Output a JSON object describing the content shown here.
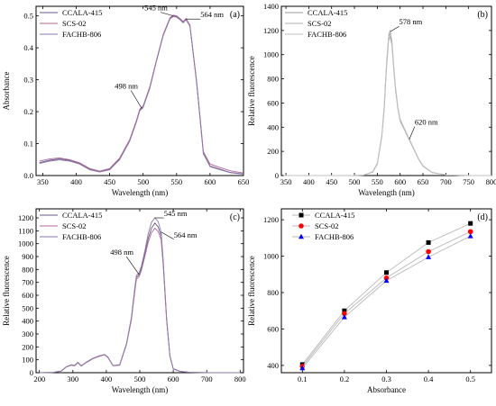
{
  "chart_data": [
    {
      "id": "a",
      "type": "line",
      "panel_label": "(a)",
      "xlabel": "Wavelength (nm)",
      "ylabel": "Absorbance",
      "xlim": [
        340,
        650
      ],
      "ylim": [
        0,
        0.53
      ],
      "xticks": [
        350,
        400,
        450,
        500,
        550,
        600,
        650
      ],
      "yticks": [
        0.0,
        0.1,
        0.2,
        0.3,
        0.4,
        0.5
      ],
      "ytick_decimals": 1,
      "legend_position": "top-left",
      "marker": "none",
      "series": [
        {
          "name": "CCALA-415",
          "color": "#6a5a8a",
          "x": [
            345,
            360,
            375,
            390,
            405,
            420,
            435,
            450,
            465,
            480,
            490,
            495,
            500,
            510,
            520,
            530,
            540,
            545,
            550,
            555,
            560,
            564,
            570,
            580,
            590,
            600,
            615,
            630,
            650
          ],
          "y": [
            0.04,
            0.048,
            0.052,
            0.048,
            0.038,
            0.02,
            0.012,
            0.02,
            0.052,
            0.11,
            0.17,
            0.205,
            0.215,
            0.275,
            0.36,
            0.44,
            0.492,
            0.5,
            0.498,
            0.49,
            0.48,
            0.49,
            0.47,
            0.29,
            0.07,
            0.03,
            0.02,
            0.01,
            0.005
          ]
        },
        {
          "name": "SCS-02",
          "color": "#b06a9a",
          "x": [
            345,
            360,
            375,
            390,
            405,
            420,
            435,
            450,
            465,
            480,
            490,
            495,
            500,
            510,
            520,
            530,
            540,
            545,
            550,
            555,
            560,
            564,
            570,
            580,
            590,
            600,
            615,
            630,
            650
          ],
          "y": [
            0.045,
            0.052,
            0.055,
            0.05,
            0.04,
            0.022,
            0.014,
            0.022,
            0.055,
            0.113,
            0.173,
            0.208,
            0.218,
            0.278,
            0.362,
            0.442,
            0.494,
            0.502,
            0.5,
            0.492,
            0.482,
            0.492,
            0.472,
            0.295,
            0.075,
            0.036,
            0.025,
            0.015,
            0.008
          ]
        },
        {
          "name": "FACHB-806",
          "color": "#8a7aa8",
          "x": [
            345,
            360,
            375,
            390,
            405,
            420,
            435,
            450,
            465,
            480,
            490,
            495,
            500,
            510,
            520,
            530,
            540,
            545,
            550,
            555,
            560,
            564,
            570,
            580,
            590,
            600,
            615,
            630,
            650
          ],
          "y": [
            0.038,
            0.045,
            0.049,
            0.045,
            0.036,
            0.018,
            0.011,
            0.018,
            0.05,
            0.108,
            0.168,
            0.203,
            0.213,
            0.273,
            0.358,
            0.438,
            0.49,
            0.498,
            0.496,
            0.488,
            0.478,
            0.488,
            0.468,
            0.288,
            0.068,
            0.028,
            0.018,
            0.009,
            0.004
          ]
        }
      ],
      "annotations": [
        {
          "text": "545 nm",
          "x": 545,
          "y": 0.5
        },
        {
          "text": "564 nm",
          "x": 564,
          "y": 0.49
        },
        {
          "text": "498 nm",
          "x": 498,
          "y": 0.21
        }
      ]
    },
    {
      "id": "b",
      "type": "line",
      "panel_label": "(b)",
      "xlabel": "Wavelength (nm)",
      "ylabel": "Relative fluorescence",
      "xlim": [
        340,
        800
      ],
      "ylim": [
        0,
        1400
      ],
      "xticks": [
        350,
        400,
        450,
        500,
        550,
        600,
        650,
        700,
        750,
        800
      ],
      "yticks": [
        0,
        200,
        400,
        600,
        800,
        1000,
        1200,
        1400
      ],
      "ytick_decimals": 0,
      "legend_position": "top-left",
      "marker": "none",
      "series": [
        {
          "name": "CCALA-415",
          "color": "#999999",
          "x": [
            345,
            400,
            450,
            500,
            520,
            540,
            550,
            560,
            565,
            570,
            575,
            578,
            582,
            586,
            590,
            595,
            600,
            610,
            620,
            630,
            640,
            650,
            670,
            700,
            750,
            800
          ],
          "y": [
            0,
            0,
            0,
            1,
            3,
            30,
            100,
            330,
            560,
            900,
            1150,
            1180,
            1100,
            900,
            720,
            560,
            460,
            380,
            300,
            220,
            140,
            80,
            25,
            5,
            0,
            0
          ]
        },
        {
          "name": "SCS-02",
          "color": "#b0b0b0",
          "x": [
            345,
            400,
            450,
            500,
            520,
            540,
            550,
            560,
            565,
            570,
            575,
            578,
            582,
            586,
            590,
            595,
            600,
            610,
            620,
            630,
            640,
            650,
            670,
            700,
            750,
            800
          ],
          "y": [
            0,
            0,
            0,
            1,
            3,
            28,
            95,
            320,
            540,
            880,
            1120,
            1150,
            1075,
            880,
            705,
            550,
            450,
            372,
            295,
            215,
            136,
            78,
            24,
            5,
            0,
            0
          ]
        },
        {
          "name": "FACHB-806",
          "color": "#c2c2c2",
          "x": [
            345,
            400,
            450,
            500,
            520,
            540,
            550,
            560,
            565,
            570,
            575,
            578,
            582,
            586,
            590,
            595,
            600,
            610,
            620,
            630,
            640,
            650,
            670,
            700,
            750,
            800
          ],
          "y": [
            0,
            0,
            0,
            1,
            3,
            32,
            105,
            340,
            580,
            920,
            1170,
            1200,
            1120,
            915,
            735,
            570,
            468,
            385,
            305,
            224,
            143,
            82,
            26,
            5,
            0,
            0
          ]
        }
      ],
      "annotations": [
        {
          "text": "578 nm",
          "x": 578,
          "y": 1190
        },
        {
          "text": "620 nm",
          "x": 620,
          "y": 300
        }
      ]
    },
    {
      "id": "c",
      "type": "line",
      "panel_label": "(c)",
      "xlabel": "Wavelength (nm)",
      "ylabel": "Relative fluorescence",
      "xlim": [
        190,
        810
      ],
      "ylim": [
        0,
        1270
      ],
      "xticks": [
        200,
        300,
        400,
        500,
        600,
        700,
        800
      ],
      "yticks": [
        0,
        100,
        200,
        300,
        400,
        500,
        600,
        700,
        800,
        900,
        1000,
        1100,
        1200
      ],
      "ytick_decimals": 0,
      "legend_position": "top-left",
      "marker": "none",
      "series": [
        {
          "name": "CCALA-415",
          "color": "#6a5a8a",
          "x": [
            200,
            240,
            265,
            280,
            295,
            305,
            315,
            325,
            340,
            360,
            380,
            395,
            405,
            420,
            440,
            460,
            475,
            485,
            490,
            498,
            505,
            515,
            525,
            535,
            545,
            555,
            564,
            570,
            580,
            590,
            600,
            620,
            650,
            700,
            750,
            800
          ],
          "y": [
            0,
            2,
            12,
            45,
            60,
            55,
            78,
            52,
            80,
            110,
            130,
            140,
            118,
            55,
            60,
            220,
            420,
            640,
            740,
            760,
            810,
            920,
            1040,
            1120,
            1160,
            1130,
            1060,
            850,
            420,
            130,
            30,
            10,
            3,
            1,
            0,
            0
          ]
        },
        {
          "name": "SCS-02",
          "color": "#b06a9a",
          "x": [
            200,
            240,
            265,
            280,
            295,
            305,
            315,
            325,
            340,
            360,
            380,
            395,
            405,
            420,
            440,
            460,
            475,
            485,
            490,
            498,
            505,
            515,
            525,
            535,
            545,
            555,
            564,
            570,
            580,
            590,
            600,
            620,
            650,
            700,
            750,
            800
          ],
          "y": [
            0,
            2,
            12,
            44,
            58,
            53,
            76,
            50,
            78,
            108,
            128,
            138,
            116,
            54,
            58,
            216,
            410,
            625,
            725,
            745,
            795,
            900,
            1010,
            1085,
            1120,
            1095,
            1030,
            830,
            410,
            126,
            28,
            10,
            3,
            1,
            0,
            0
          ]
        },
        {
          "name": "FACHB-806",
          "color": "#8a7aa8",
          "x": [
            200,
            240,
            265,
            280,
            295,
            305,
            315,
            325,
            340,
            360,
            380,
            395,
            405,
            420,
            440,
            460,
            475,
            485,
            490,
            498,
            505,
            515,
            525,
            535,
            545,
            555,
            564,
            570,
            580,
            590,
            600,
            620,
            650,
            700,
            750,
            800
          ],
          "y": [
            0,
            2,
            13,
            46,
            62,
            57,
            80,
            54,
            82,
            112,
            132,
            142,
            120,
            56,
            62,
            224,
            430,
            655,
            755,
            775,
            830,
            945,
            1075,
            1165,
            1200,
            1170,
            1090,
            870,
            430,
            134,
            32,
            11,
            3,
            1,
            0,
            0
          ]
        }
      ],
      "annotations": [
        {
          "text": "545 nm",
          "x": 545,
          "y": 1200
        },
        {
          "text": "564 nm",
          "x": 564,
          "y": 1090
        },
        {
          "text": "498 nm",
          "x": 498,
          "y": 760
        }
      ]
    },
    {
      "id": "d",
      "type": "line",
      "panel_label": "(d)",
      "xlabel": "Absorbance",
      "ylabel": "Relative fluorescence",
      "xlim": [
        0.05,
        0.55
      ],
      "ylim": [
        360,
        1260
      ],
      "xticks": [
        0.1,
        0.2,
        0.3,
        0.4,
        0.5
      ],
      "yticks": [
        400,
        600,
        800,
        1000,
        1200
      ],
      "ytick_decimals": 0,
      "xtick_decimals": 1,
      "legend_position": "top-left",
      "marker": "yes",
      "categories": [
        0.1,
        0.2,
        0.3,
        0.4,
        0.5
      ],
      "series": [
        {
          "name": "CCALA-415",
          "color": "#000000",
          "line_color": "#b8b8b8",
          "marker": "square",
          "values": [
            405,
            700,
            910,
            1075,
            1180
          ]
        },
        {
          "name": "SCS-02",
          "color": "#ff0000",
          "line_color": "#b8b8b8",
          "marker": "circle",
          "values": [
            395,
            685,
            880,
            1025,
            1135
          ]
        },
        {
          "name": "FACHB-806",
          "color": "#0000ff",
          "line_color": "#b8b8b8",
          "marker": "triangle",
          "values": [
            385,
            665,
            865,
            995,
            1110
          ]
        }
      ]
    }
  ]
}
